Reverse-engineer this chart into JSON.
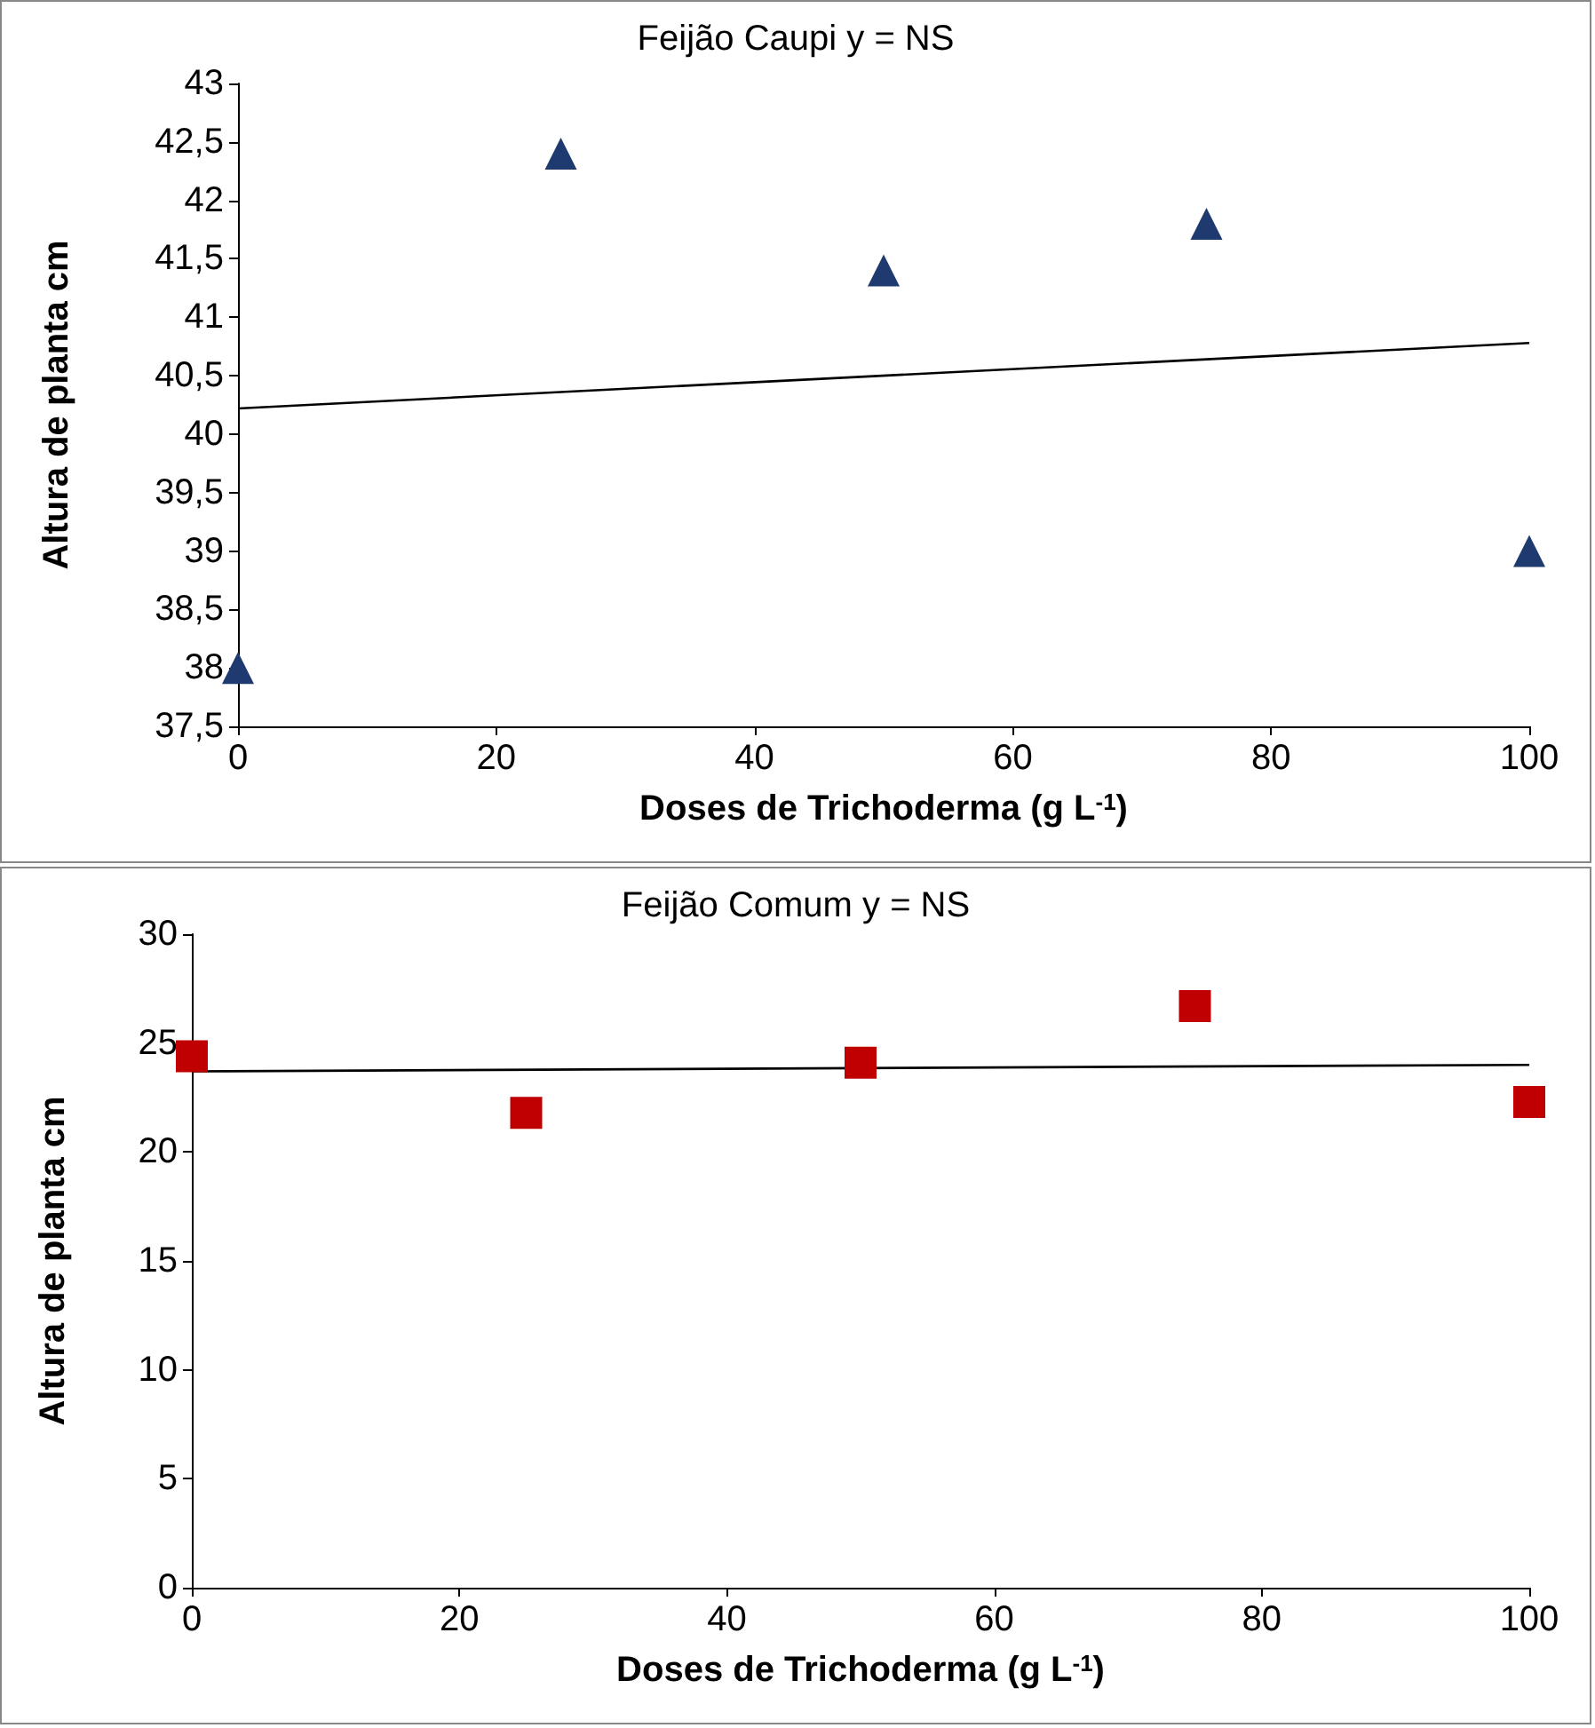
{
  "chart_data": [
    {
      "type": "scatter",
      "title": "Feijão Caupi y = NS",
      "xlabel": "Doses de Trichoderma (g L$^{-1}$)",
      "ylabel": "Altura de planta cm",
      "xlim": [
        0,
        100
      ],
      "xticks": [
        0,
        20,
        40,
        60,
        80,
        100
      ],
      "ylim": [
        37.5,
        43
      ],
      "yticks": [
        {
          "value": 37.5,
          "label": "37,5"
        },
        38,
        {
          "value": 38.5,
          "label": "38,5"
        },
        39,
        {
          "value": 39.5,
          "label": "39,5"
        },
        40,
        {
          "value": 40.5,
          "label": "40,5"
        },
        41,
        {
          "value": 41.5,
          "label": "41,5"
        },
        42,
        {
          "value": 42.5,
          "label": "42,5"
        },
        43
      ],
      "grid": false,
      "series": [
        {
          "marker": "triangle",
          "color": "#1f3a6e",
          "x": [
            0,
            25,
            50,
            75,
            100
          ],
          "values": [
            38.0,
            42.4,
            41.4,
            41.8,
            39.0
          ]
        },
        {
          "type": "line",
          "marker": "none",
          "line_style": "solid",
          "color": "#000000",
          "x": [
            0,
            100
          ],
          "values": [
            40.22,
            40.78
          ]
        }
      ]
    },
    {
      "type": "scatter",
      "title": "Feijão Comum y = NS",
      "xlabel": "Doses de Trichoderma (g L$^{-1}$)",
      "ylabel": "Altura de planta cm",
      "xlim": [
        0,
        100
      ],
      "xticks": [
        0,
        20,
        40,
        60,
        80,
        100
      ],
      "ylim": [
        0,
        30
      ],
      "yticks": [
        0,
        5,
        10,
        15,
        20,
        25,
        30
      ],
      "grid": false,
      "series": [
        {
          "marker": "square",
          "color": "#c00000",
          "x": [
            0,
            25,
            50,
            75,
            100
          ],
          "values": [
            24.4,
            21.8,
            24.1,
            26.7,
            22.3
          ]
        },
        {
          "type": "line",
          "marker": "none",
          "line_style": "solid",
          "color": "#000000",
          "x": [
            0,
            100
          ],
          "values": [
            23.7,
            24.0
          ]
        }
      ]
    }
  ]
}
